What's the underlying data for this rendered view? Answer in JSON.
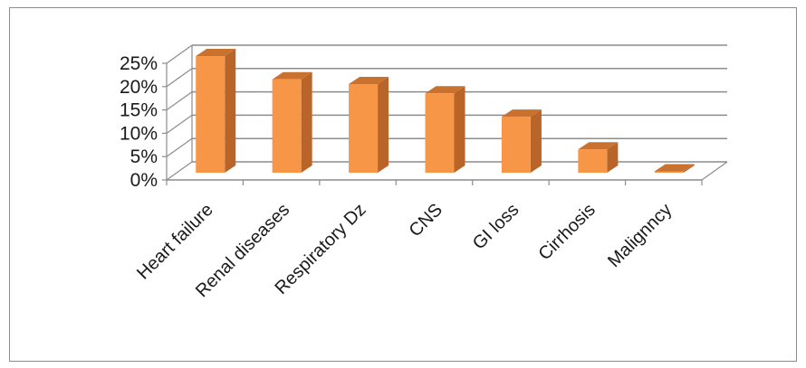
{
  "chart_data": {
    "type": "bar",
    "style": "3d-column",
    "title": "",
    "xlabel": "",
    "ylabel": "",
    "categories": [
      "Heart failure",
      "Renal diseases",
      "Respiratory Dz",
      "CNS",
      "GI loss",
      "Cirrhosis",
      "Malignncy"
    ],
    "values": [
      25,
      20,
      19,
      17,
      12,
      5,
      0.3
    ],
    "ylim": [
      0,
      25
    ],
    "yticks": [
      "0%",
      "5%",
      "10%",
      "15%",
      "20%",
      "25%"
    ],
    "grid": true,
    "legend": "none",
    "colors": {
      "bar_front": "#F79646",
      "bar_side": "#B9652A",
      "bar_top": "#C9712F",
      "grid": "#8c8c8c"
    }
  }
}
